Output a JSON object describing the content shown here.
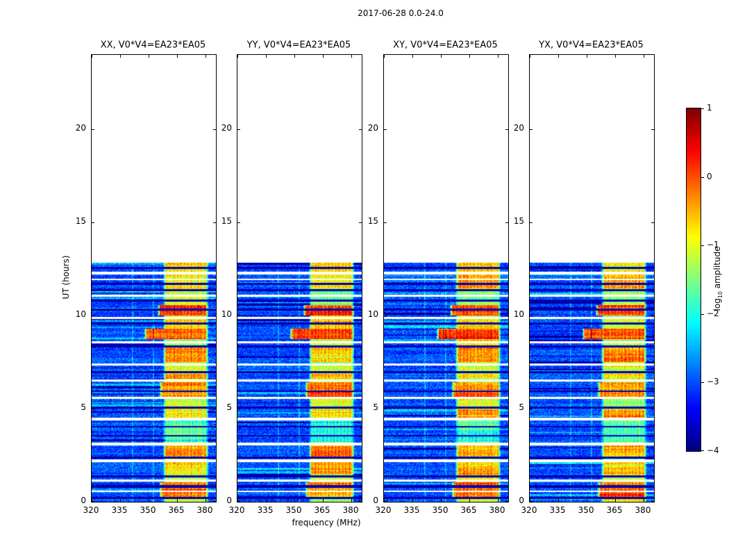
{
  "figure": {
    "title": "2017-06-28 0.0-24.0",
    "xlabel": "frequency (MHz)",
    "ylabel": "UT (hours)",
    "colorbar_label": {
      "pre": "log",
      "sub": "10",
      "post": " amplitude"
    }
  },
  "chart_data": {
    "type": "heatmap",
    "title": "2017-06-28 0.0-24.0",
    "layout": "four side-by-side dynamic-spectrum panels (time vs frequency), jet colormap, shared colorbar on right, no grid",
    "panels": [
      {
        "title": "XX, V0*V4=EA23*EA05",
        "polarization": "XX",
        "baseline": "V0*V4=EA23*EA05"
      },
      {
        "title": "YY, V0*V4=EA23*EA05",
        "polarization": "YY",
        "baseline": "V0*V4=EA23*EA05"
      },
      {
        "title": "XY, V0*V4=EA23*EA05",
        "polarization": "XY",
        "baseline": "V0*V4=EA23*EA05"
      },
      {
        "title": "YX, V0*V4=EA23*EA05",
        "polarization": "YX",
        "baseline": "V0*V4=EA23*EA05"
      }
    ],
    "x_axis": {
      "label": "frequency (MHz)",
      "range": [
        320,
        385.3
      ],
      "ticks": [
        320,
        335,
        350,
        365,
        380
      ]
    },
    "y_axis": {
      "label": "UT (hours)",
      "range": [
        0,
        24
      ],
      "ticks": [
        0,
        5,
        10,
        15,
        20
      ]
    },
    "colorbar": {
      "label": "log10 amplitude",
      "range": [
        -4,
        1
      ],
      "tick_values": [
        1,
        0,
        -1,
        -2,
        -3,
        -4
      ],
      "tick_labels": [
        "1",
        "0",
        "−1",
        "−2",
        "−3",
        "−4"
      ],
      "colormap": "jet"
    },
    "features": {
      "data_coverage_ut_hours": [
        0,
        12.85
      ],
      "no_data_region_ut_hours": [
        12.85,
        24
      ],
      "background_level_log10": -3.0,
      "rfi_band_mhz": [
        357.5,
        381.5
      ],
      "rfi_band_level_log10": -1.15,
      "narrow_lines_mhz": [
        341.6,
        352.4
      ],
      "gap_rows_ut_hours": [
        [
          12.22,
          12.34
        ],
        [
          11.9,
          11.98
        ],
        [
          11.02,
          11.14
        ],
        [
          9.82,
          9.94
        ],
        [
          8.52,
          8.64
        ],
        [
          7.32,
          7.44
        ],
        [
          6.44,
          6.56
        ],
        [
          5.52,
          5.62
        ],
        [
          4.38,
          4.5
        ],
        [
          3.04,
          3.16
        ],
        [
          2.14,
          2.26
        ],
        [
          1.08,
          1.18
        ],
        [
          0.52,
          0.6
        ]
      ],
      "dark_rows_ut_hours": [
        [
          12.52,
          12.62
        ],
        [
          11.64,
          11.74
        ],
        [
          11.3,
          11.42
        ],
        [
          10.74,
          10.86
        ],
        [
          10.28,
          10.38
        ],
        [
          9.52,
          9.64
        ],
        [
          8.3,
          8.4
        ],
        [
          6.9,
          7.0
        ],
        [
          5.9,
          5.96
        ],
        [
          5.0,
          5.1
        ],
        [
          4.0,
          4.06
        ],
        [
          3.5,
          3.6
        ],
        [
          2.3,
          2.42
        ],
        [
          1.3,
          1.42
        ],
        [
          0.76,
          0.88
        ],
        [
          0.14,
          0.26
        ]
      ],
      "hot_blocks_ut_hours": [
        [
          12.34,
          12.85,
          0.5,
          0
        ],
        [
          11.45,
          12.2,
          0.5,
          0
        ],
        [
          10.02,
          10.55,
          1.3,
          3
        ],
        [
          9.64,
          9.82,
          0.45,
          0
        ],
        [
          9.3,
          9.5,
          0.4,
          0
        ],
        [
          8.72,
          9.3,
          1.25,
          10
        ],
        [
          7.5,
          8.28,
          0.8,
          0
        ],
        [
          6.6,
          6.88,
          0.55,
          0
        ],
        [
          5.55,
          6.42,
          0.95,
          2
        ],
        [
          4.52,
          4.98,
          0.6,
          0
        ],
        [
          2.44,
          3.02,
          0.75,
          0
        ],
        [
          1.44,
          2.12,
          0.6,
          0
        ],
        [
          0.26,
          1.06,
          0.95,
          2
        ]
      ],
      "cold_blocks_ut_hours": [
        [
          3.2,
          4.36,
          -0.7
        ],
        [
          10.88,
          11.3,
          -0.35
        ]
      ]
    }
  }
}
